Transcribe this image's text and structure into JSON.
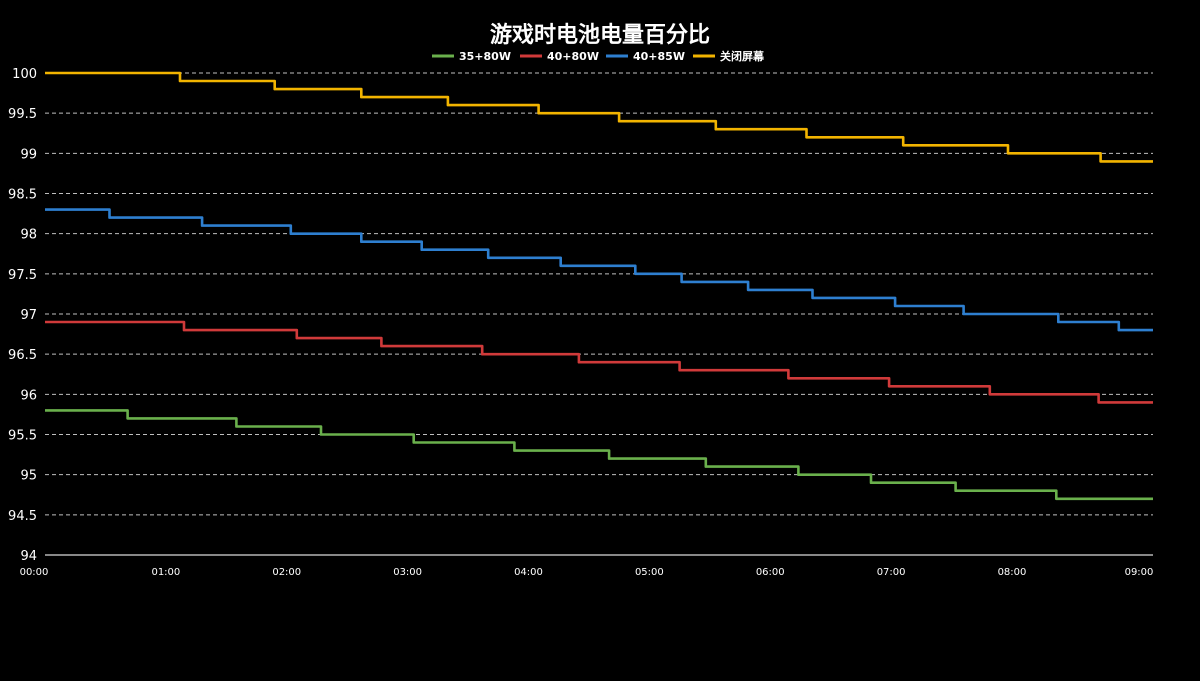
{
  "chart_data": {
    "type": "line",
    "title": "游戏时电池电量百分比",
    "xlabel": "",
    "ylabel": "",
    "x_ticks": [
      "00:00",
      "01:00",
      "02:00",
      "03:00",
      "04:00",
      "05:00",
      "06:00",
      "07:00",
      "08:00",
      "09:00"
    ],
    "x_unit": "minutes",
    "xlim": [
      0,
      550
    ],
    "y_ticks": [
      "94",
      "94.5",
      "95",
      "95.5",
      "96",
      "96.5",
      "97",
      "97.5",
      "98",
      "98.5",
      "99",
      "99.5",
      "100"
    ],
    "ylim": [
      94,
      100
    ],
    "grid": "horizontal-dashed",
    "legend_position": "top",
    "series": [
      {
        "name": "35+80W",
        "color": "#6ab04c",
        "points": [
          [
            0,
            95.8
          ],
          [
            41,
            95.8
          ],
          [
            41,
            95.7
          ],
          [
            95,
            95.7
          ],
          [
            95,
            95.6
          ],
          [
            137,
            95.6
          ],
          [
            137,
            95.5
          ],
          [
            183,
            95.5
          ],
          [
            183,
            95.4
          ],
          [
            233,
            95.4
          ],
          [
            233,
            95.3
          ],
          [
            280,
            95.3
          ],
          [
            280,
            95.2
          ],
          [
            328,
            95.2
          ],
          [
            328,
            95.1
          ],
          [
            374,
            95.1
          ],
          [
            374,
            95.0
          ],
          [
            410,
            95.0
          ],
          [
            410,
            94.9
          ],
          [
            452,
            94.9
          ],
          [
            452,
            94.8
          ],
          [
            502,
            94.8
          ],
          [
            502,
            94.7
          ],
          [
            550,
            94.7
          ]
        ]
      },
      {
        "name": "40+80W",
        "color": "#d03a3a",
        "points": [
          [
            0,
            96.9
          ],
          [
            69,
            96.9
          ],
          [
            69,
            96.8
          ],
          [
            125,
            96.8
          ],
          [
            125,
            96.7
          ],
          [
            167,
            96.7
          ],
          [
            167,
            96.6
          ],
          [
            217,
            96.6
          ],
          [
            217,
            96.5
          ],
          [
            265,
            96.5
          ],
          [
            265,
            96.4
          ],
          [
            315,
            96.4
          ],
          [
            315,
            96.3
          ],
          [
            369,
            96.3
          ],
          [
            369,
            96.2
          ],
          [
            419,
            96.2
          ],
          [
            419,
            96.1
          ],
          [
            469,
            96.1
          ],
          [
            469,
            96.0
          ],
          [
            523,
            96.0
          ],
          [
            523,
            95.9
          ],
          [
            550,
            95.9
          ]
        ]
      },
      {
        "name": "40+85W",
        "color": "#2e7fd0",
        "points": [
          [
            0,
            98.3
          ],
          [
            32,
            98.3
          ],
          [
            32,
            98.2
          ],
          [
            78,
            98.2
          ],
          [
            78,
            98.1
          ],
          [
            122,
            98.1
          ],
          [
            122,
            98.0
          ],
          [
            157,
            98.0
          ],
          [
            157,
            97.9
          ],
          [
            187,
            97.9
          ],
          [
            187,
            97.8
          ],
          [
            220,
            97.8
          ],
          [
            220,
            97.7
          ],
          [
            256,
            97.7
          ],
          [
            256,
            97.6
          ],
          [
            293,
            97.6
          ],
          [
            293,
            97.5
          ],
          [
            316,
            97.5
          ],
          [
            316,
            97.4
          ],
          [
            349,
            97.4
          ],
          [
            349,
            97.3
          ],
          [
            381,
            97.3
          ],
          [
            381,
            97.2
          ],
          [
            422,
            97.2
          ],
          [
            422,
            97.1
          ],
          [
            456,
            97.1
          ],
          [
            456,
            97.0
          ],
          [
            503,
            97.0
          ],
          [
            503,
            96.9
          ],
          [
            533,
            96.9
          ],
          [
            533,
            96.8
          ],
          [
            550,
            96.8
          ]
        ]
      },
      {
        "name": "关闭屏幕",
        "color": "#f2b400",
        "points": [
          [
            0,
            100
          ],
          [
            67,
            100
          ],
          [
            67,
            99.9
          ],
          [
            114,
            99.9
          ],
          [
            114,
            99.8
          ],
          [
            157,
            99.8
          ],
          [
            157,
            99.7
          ],
          [
            200,
            99.7
          ],
          [
            200,
            99.6
          ],
          [
            245,
            99.6
          ],
          [
            245,
            99.5
          ],
          [
            285,
            99.5
          ],
          [
            285,
            99.4
          ],
          [
            333,
            99.4
          ],
          [
            333,
            99.3
          ],
          [
            378,
            99.3
          ],
          [
            378,
            99.2
          ],
          [
            426,
            99.2
          ],
          [
            426,
            99.1
          ],
          [
            478,
            99.1
          ],
          [
            478,
            99.0
          ],
          [
            524,
            99.0
          ],
          [
            524,
            98.9
          ],
          [
            550,
            98.9
          ]
        ]
      }
    ]
  }
}
